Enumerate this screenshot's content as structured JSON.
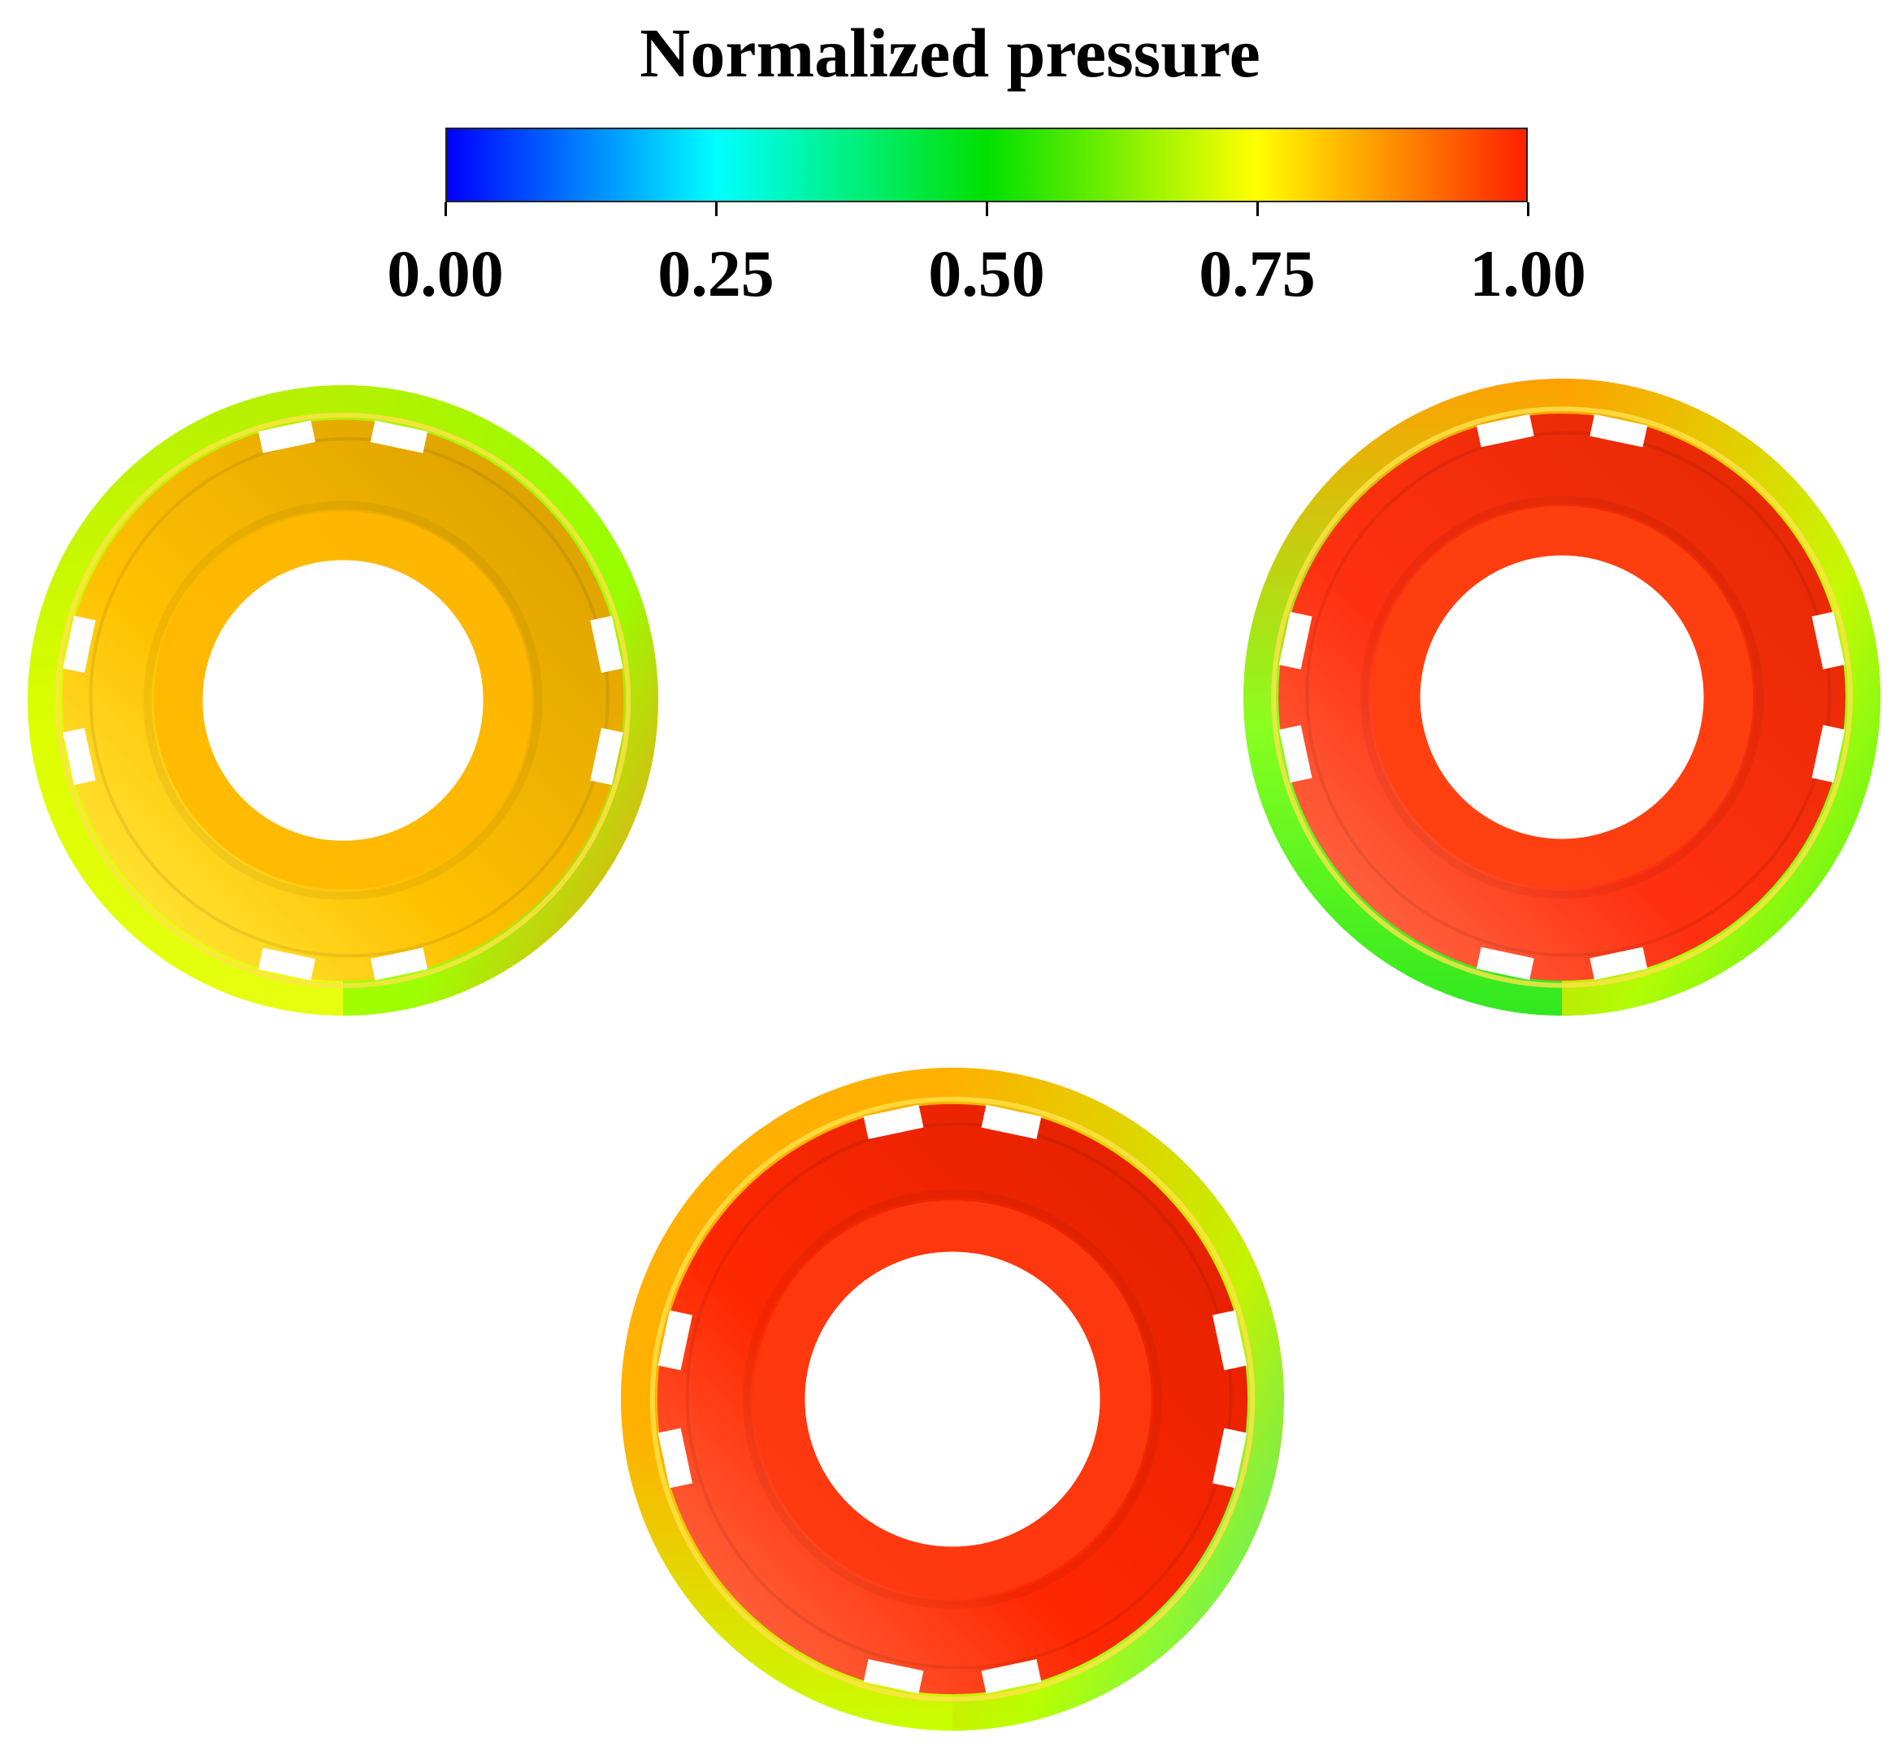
{
  "colorbar": {
    "title": "Normalized pressure",
    "stops": [
      {
        "value": 0.0,
        "color": "#0000ff"
      },
      {
        "value": 0.25,
        "color": "#00ffff"
      },
      {
        "value": 0.5,
        "color": "#00e000"
      },
      {
        "value": 0.75,
        "color": "#ffff00"
      },
      {
        "value": 1.0,
        "color": "#ff2000"
      }
    ],
    "ticks": [
      {
        "value": 0.0,
        "label": "0.00"
      },
      {
        "value": 0.25,
        "label": "0.25"
      },
      {
        "value": 0.5,
        "label": "0.50"
      },
      {
        "value": 0.75,
        "label": "0.75"
      },
      {
        "value": 1.0,
        "label": "1.00"
      }
    ]
  },
  "contour_plots": [
    {
      "name": "top-left",
      "outer_band": {
        "top": "#b4f000",
        "left": "#dcff00",
        "right": "#90ff00",
        "bottom_left": "#e6ff10",
        "bottom_right": "#ff7b20"
      },
      "inner_disk": {
        "light": "#fff44a",
        "mid": "#ffc000",
        "dark": "#d49a00"
      },
      "hub": "#ffb800"
    },
    {
      "name": "top-right",
      "outer_band": {
        "top": "#ffa000",
        "left": "#88ff20",
        "right": "#c8ff00",
        "bottom_left": "#30e820",
        "bottom_right": "#40f020"
      },
      "inner_disk": {
        "light": "#ff7a55",
        "mid": "#ff3010",
        "dark": "#e02800"
      },
      "hub": "#ff4010"
    },
    {
      "name": "bottom",
      "outer_band": {
        "top": "#ffb000",
        "left": "#ffb000",
        "right": "#b8ff00",
        "bottom_left": "#c8ff00",
        "bottom_right": "#20f0a0"
      },
      "inner_disk": {
        "light": "#ff7a55",
        "mid": "#ff2800",
        "dark": "#dd2000"
      },
      "hub": "#ff3a10"
    }
  ]
}
